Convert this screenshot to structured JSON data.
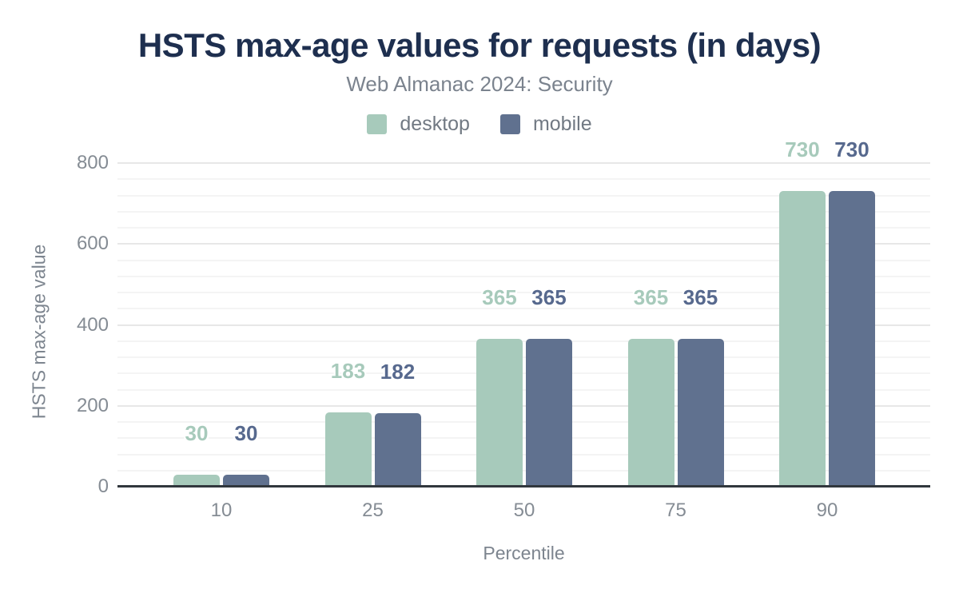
{
  "chart_data": {
    "type": "bar",
    "title": "HSTS max-age values for requests (in days)",
    "subtitle": "Web Almanac 2024: Security",
    "xlabel": "Percentile",
    "ylabel": "HSTS max-age value",
    "categories": [
      "10",
      "25",
      "50",
      "75",
      "90"
    ],
    "series": [
      {
        "name": "desktop",
        "color": "#a7cabb",
        "label_color": "#a7cabb",
        "values": [
          30,
          183,
          365,
          365,
          730
        ]
      },
      {
        "name": "mobile",
        "color": "#60718f",
        "label_color": "#57698e",
        "values": [
          30,
          182,
          365,
          365,
          730
        ]
      }
    ],
    "ylim": [
      0,
      800
    ],
    "y_ticks": [
      0,
      200,
      400,
      600,
      800
    ],
    "minor_grid_step": 40,
    "grid": true,
    "legend_position": "top",
    "value_labels": true
  },
  "colors": {
    "title": "#1e2f4f",
    "subtitle": "#7b838e",
    "legend_text": "#717983",
    "tick_text": "#858c94",
    "axis_title_text": "#7d858f",
    "grid_major": "#e7e7e7",
    "grid_minor": "#f4f4f4",
    "axis_line": "#31373d",
    "background": "#ffffff"
  }
}
